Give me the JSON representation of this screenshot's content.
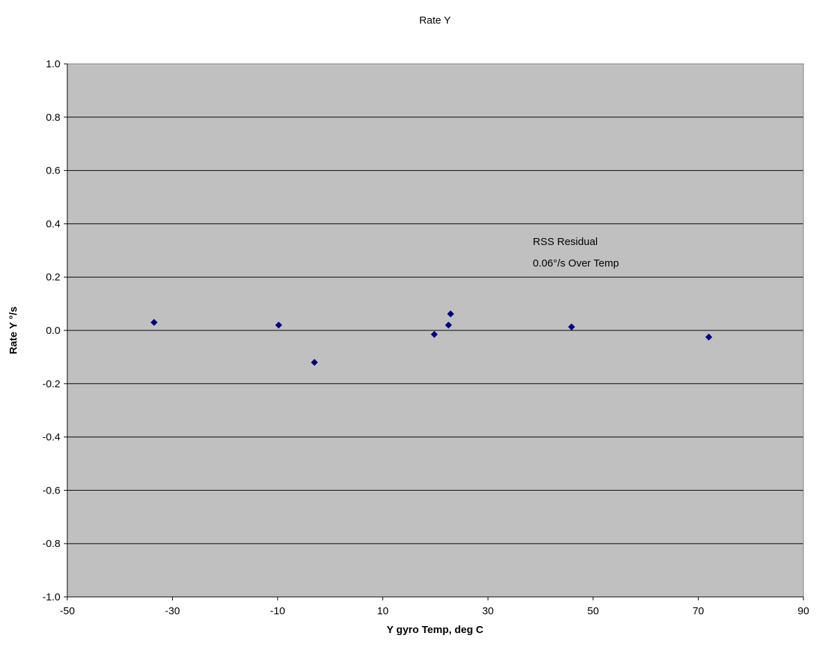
{
  "chart_data": {
    "type": "scatter",
    "title": "Rate Y",
    "xlabel": "Y gyro Temp, deg C",
    "ylabel": "Rate Y °/s",
    "xlim": [
      -50,
      90
    ],
    "ylim": [
      -1.0,
      1.0
    ],
    "x_ticks": [
      "-50",
      "-30",
      "-10",
      "10",
      "30",
      "50",
      "70",
      "90"
    ],
    "y_ticks": [
      "1.0",
      "0.8",
      "0.6",
      "0.4",
      "0.2",
      "0.0",
      "-0.2",
      "-0.4",
      "-0.6",
      "-0.8",
      "-1.0"
    ],
    "x_tick_values": [
      -50,
      -30,
      -10,
      10,
      30,
      50,
      70,
      90
    ],
    "y_tick_values": [
      1.0,
      0.8,
      0.6,
      0.4,
      0.2,
      0.0,
      -0.2,
      -0.4,
      -0.6,
      -0.8,
      -1.0
    ],
    "grid": "horizontal",
    "legend": "none",
    "plot_background": "#c0c0c0",
    "marker_color": "#000080",
    "series": [
      {
        "points": [
          {
            "x": -33.5,
            "y": 0.03
          },
          {
            "x": -9.8,
            "y": 0.02
          },
          {
            "x": -3.0,
            "y": -0.12
          },
          {
            "x": 19.8,
            "y": -0.015
          },
          {
            "x": 22.5,
            "y": 0.02
          },
          {
            "x": 22.9,
            "y": 0.062
          },
          {
            "x": 45.9,
            "y": 0.013
          },
          {
            "x": 72.0,
            "y": -0.025
          }
        ]
      }
    ],
    "annotation": {
      "line1": "RSS Residual",
      "line2": "0.06°/s Over Temp"
    }
  }
}
